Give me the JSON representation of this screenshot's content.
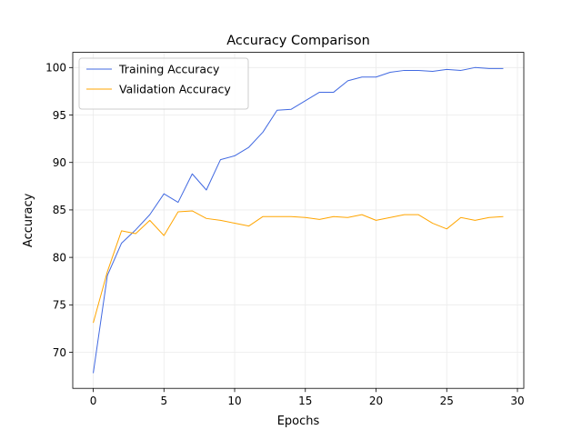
{
  "chart_data": {
    "type": "line",
    "title": "Accuracy Comparison",
    "xlabel": "Epochs",
    "ylabel": "Accuracy",
    "xlim": [
      -1.45,
      30.45
    ],
    "ylim": [
      66.2,
      101.6
    ],
    "x_ticks": [
      0,
      5,
      10,
      15,
      20,
      25,
      30
    ],
    "y_ticks": [
      70,
      75,
      80,
      85,
      90,
      95,
      100
    ],
    "grid": true,
    "legend_position": "top-left",
    "x": [
      0,
      1,
      2,
      3,
      4,
      5,
      6,
      7,
      8,
      9,
      10,
      11,
      12,
      13,
      14,
      15,
      16,
      17,
      18,
      19,
      20,
      21,
      22,
      23,
      24,
      25,
      26,
      27,
      28,
      29
    ],
    "series": [
      {
        "name": "Training Accuracy",
        "color": "#4169e1",
        "values": [
          67.8,
          78.1,
          81.5,
          82.9,
          84.5,
          86.7,
          85.8,
          88.8,
          87.1,
          90.3,
          90.7,
          91.6,
          93.2,
          95.5,
          95.6,
          96.5,
          97.4,
          97.4,
          98.6,
          99.0,
          99.0,
          99.5,
          99.7,
          99.7,
          99.6,
          99.8,
          99.7,
          100.0,
          99.9,
          99.9
        ]
      },
      {
        "name": "Validation Accuracy",
        "color": "#ffa500",
        "values": [
          73.1,
          78.5,
          82.8,
          82.5,
          83.9,
          82.3,
          84.8,
          84.9,
          84.1,
          83.9,
          83.6,
          83.3,
          84.3,
          84.3,
          84.3,
          84.2,
          84.0,
          84.3,
          84.2,
          84.5,
          83.9,
          84.2,
          84.5,
          84.5,
          83.6,
          83.0,
          84.2,
          83.9,
          84.2,
          84.3
        ]
      }
    ]
  }
}
